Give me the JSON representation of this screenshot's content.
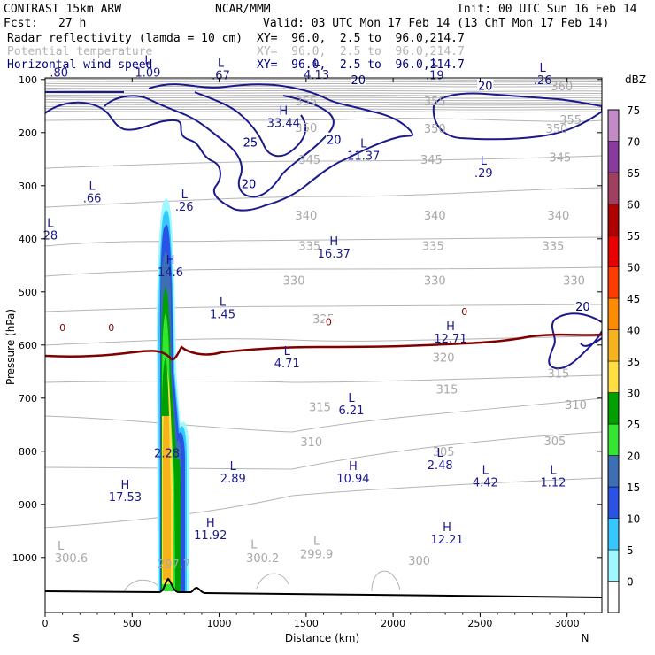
{
  "header": {
    "model": "CONTRAST 15km ARW",
    "org": "NCAR/MMM",
    "init": "Init: 00 UTC Sun 16 Feb 14",
    "fcst_label": "Fcst:",
    "fcst_value": "27 h",
    "valid": "Valid: 03 UTC Mon 17 Feb 14 (13 ChT Mon 17 Feb 14)"
  },
  "fields": [
    {
      "name": "Radar reflectivity (lamda = 10 cm)",
      "xy": "XY=  96.0,  2.5 to  96.0,214.7",
      "color": "#000000"
    },
    {
      "name": "Potential temperature",
      "xy": "XY=  96.0,  2.5 to  96.0,214.7",
      "color": "#b4b4b4"
    },
    {
      "name": "Horizontal wind speed",
      "xy": "XY=  96.0,  2.5 to  96.0,214.7",
      "color": "#000080"
    }
  ],
  "chart_data": {
    "type": "cross-section",
    "xlabel": "Distance (km)",
    "ylabel": "Pressure (hPa)",
    "xlim": [
      0,
      3200
    ],
    "ylim": [
      1045,
      62
    ],
    "x_ticks": [
      0,
      500,
      1000,
      1500,
      2000,
      2500,
      3000
    ],
    "y_ticks": [
      100,
      200,
      300,
      400,
      500,
      600,
      700,
      800,
      900,
      1000
    ],
    "x_end_labels": {
      "left": "S",
      "right": "N"
    },
    "colorbar": {
      "unit": "dBZ",
      "levels": [
        0,
        5,
        10,
        15,
        20,
        25,
        30,
        35,
        40,
        45,
        50,
        55,
        60,
        65,
        70,
        75
      ],
      "colors": [
        "#ffffff",
        "#9ff7ff",
        "#33c8ff",
        "#2a52e6",
        "#3c6fb4",
        "#33e633",
        "#00a000",
        "#ffdf40",
        "#f6b31c",
        "#ff8c00",
        "#ff3c00",
        "#e80000",
        "#b00000",
        "#a04060",
        "#8a3a9c",
        "#c48ac8"
      ]
    },
    "reflectivity_column": {
      "x_center": 700,
      "p_top": 270,
      "p_bottom": 1000
    },
    "theta_labels": [
      {
        "text": "360",
        "x": 2970,
        "p": 112
      },
      {
        "text": "355",
        "x": 1500,
        "p": 140
      },
      {
        "text": "355",
        "x": 2240,
        "p": 140
      },
      {
        "text": "355",
        "x": 3020,
        "p": 175
      },
      {
        "text": "350",
        "x": 1500,
        "p": 190
      },
      {
        "text": "350",
        "x": 2240,
        "p": 192
      },
      {
        "text": "350",
        "x": 2940,
        "p": 192
      },
      {
        "text": "345",
        "x": 1520,
        "p": 250
      },
      {
        "text": "345",
        "x": 2220,
        "p": 250
      },
      {
        "text": "345",
        "x": 2960,
        "p": 246
      },
      {
        "text": "340",
        "x": 1500,
        "p": 355
      },
      {
        "text": "340",
        "x": 2240,
        "p": 355
      },
      {
        "text": "340",
        "x": 2950,
        "p": 355
      },
      {
        "text": "335",
        "x": 1520,
        "p": 413
      },
      {
        "text": "335",
        "x": 2230,
        "p": 413
      },
      {
        "text": "335",
        "x": 2920,
        "p": 413
      },
      {
        "text": "330",
        "x": 1430,
        "p": 478
      },
      {
        "text": "330",
        "x": 2240,
        "p": 478
      },
      {
        "text": "330",
        "x": 3040,
        "p": 478
      },
      {
        "text": "325",
        "x": 1600,
        "p": 550
      },
      {
        "text": "320",
        "x": 2290,
        "p": 623
      },
      {
        "text": "315",
        "x": 2310,
        "p": 683
      },
      {
        "text": "315",
        "x": 1580,
        "p": 716
      },
      {
        "text": "315",
        "x": 2950,
        "p": 653
      },
      {
        "text": "310",
        "x": 1530,
        "p": 782
      },
      {
        "text": "310",
        "x": 3050,
        "p": 712
      },
      {
        "text": "305",
        "x": 2290,
        "p": 800
      },
      {
        "text": "305",
        "x": 2930,
        "p": 780
      },
      {
        "text": "300.6",
        "x": 150,
        "p": 1000
      },
      {
        "text": "297.7",
        "x": 740,
        "p": 1012
      },
      {
        "text": "300.2",
        "x": 1250,
        "p": 1000
      },
      {
        "text": "299.9",
        "x": 1560,
        "p": 993
      },
      {
        "text": "300",
        "x": 2150,
        "p": 1005
      }
    ],
    "speed_labels": [
      {
        "text": "20",
        "x": 1800,
        "p": 100
      },
      {
        "text": "20",
        "x": 2530,
        "p": 111
      },
      {
        "text": "20",
        "x": 1660,
        "p": 213
      },
      {
        "text": "25",
        "x": 1180,
        "p": 218
      },
      {
        "text": "20",
        "x": 1170,
        "p": 296
      },
      {
        "text": "20",
        "x": 3090,
        "p": 527
      }
    ],
    "zero_isotherm_labels": [
      {
        "text": "0",
        "x": 100,
        "p": 567
      },
      {
        "text": "0",
        "x": 380,
        "p": 567
      },
      {
        "text": "0",
        "x": 1630,
        "p": 556
      },
      {
        "text": "0",
        "x": 2410,
        "p": 537
      }
    ],
    "extrema": [
      {
        "letter": "",
        "value": ".80",
        "x": 80,
        "p": 71
      },
      {
        "letter": "L",
        "value": "1.09",
        "x": 590,
        "p": 71
      },
      {
        "letter": "L",
        "value": ".67",
        "x": 1010,
        "p": 76
      },
      {
        "letter": "L",
        "value": "4.13",
        "x": 1560,
        "p": 75
      },
      {
        "letter": "L",
        "value": ".19",
        "x": 2240,
        "p": 76
      },
      {
        "letter": "L",
        "value": ".26",
        "x": 2860,
        "p": 85
      },
      {
        "letter": "H",
        "value": "33.44",
        "x": 1370,
        "p": 166
      },
      {
        "letter": "L",
        "value": "11.37",
        "x": 1830,
        "p": 228
      },
      {
        "letter": "L",
        "value": ".29",
        "x": 2520,
        "p": 260
      },
      {
        "letter": "L",
        "value": ".66",
        "x": 270,
        "p": 308
      },
      {
        "letter": "L",
        "value": ".26",
        "x": 800,
        "p": 324
      },
      {
        "letter": "L",
        "value": "28",
        "x": 30,
        "p": 378
      },
      {
        "letter": "H",
        "value": "16.37",
        "x": 1660,
        "p": 412
      },
      {
        "letter": "H",
        "value": "14.6",
        "x": 720,
        "p": 447
      },
      {
        "letter": "L",
        "value": "1.45",
        "x": 1020,
        "p": 526
      },
      {
        "letter": "H",
        "value": "12.71",
        "x": 2330,
        "p": 572
      },
      {
        "letter": "L",
        "value": "4.71",
        "x": 1390,
        "p": 619
      },
      {
        "letter": "L",
        "value": "6.21",
        "x": 1760,
        "p": 707
      },
      {
        "letter": "",
        "value": "2.28",
        "x": 700,
        "p": 788
      },
      {
        "letter": "L",
        "value": "2.48",
        "x": 2270,
        "p": 810
      },
      {
        "letter": "L",
        "value": "2.89",
        "x": 1080,
        "p": 835
      },
      {
        "letter": "H",
        "value": "10.94",
        "x": 1770,
        "p": 835
      },
      {
        "letter": "L",
        "value": "4.42",
        "x": 2530,
        "p": 843
      },
      {
        "letter": "L",
        "value": "1.12",
        "x": 2920,
        "p": 843
      },
      {
        "letter": "H",
        "value": "17.53",
        "x": 460,
        "p": 870
      },
      {
        "letter": "H",
        "value": "11.92",
        "x": 950,
        "p": 942
      },
      {
        "letter": "H",
        "value": "12.21",
        "x": 2310,
        "p": 950
      },
      {
        "letter": "L",
        "value": "",
        "x": 90,
        "p": 985
      },
      {
        "letter": "L",
        "value": "",
        "x": 1200,
        "p": 983
      },
      {
        "letter": "L",
        "value": "",
        "x": 1560,
        "p": 976
      }
    ]
  }
}
